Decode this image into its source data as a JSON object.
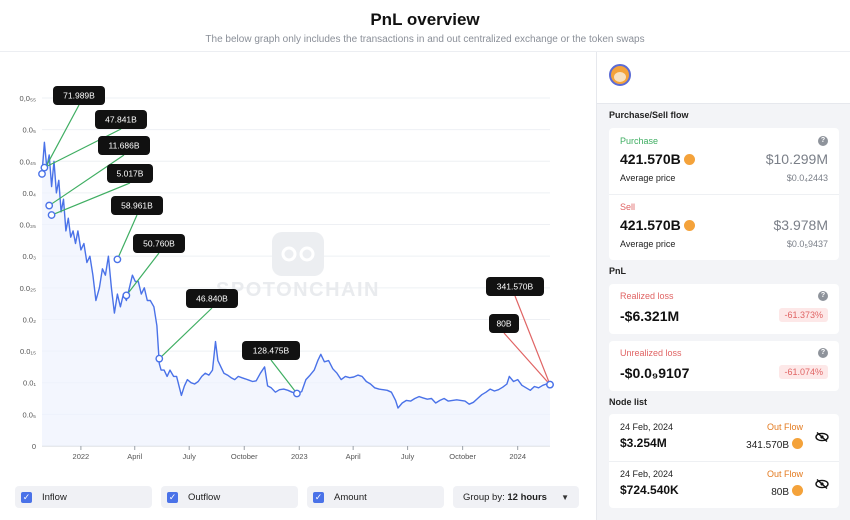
{
  "header": {
    "title": "PnL overview",
    "subtitle": "The below graph only includes the transactions in and out centralized exchange or the token swaps"
  },
  "chart_data": {
    "type": "line",
    "title": "",
    "xlabel": "",
    "ylabel": "",
    "y_tick_labels": [
      "0,0₅₅",
      "0.0₅",
      "0.0₄₅",
      "0.0₄",
      "0.0₃₅",
      "0.0₃",
      "0.0₂₅",
      "0.0₂",
      "0.0₁₅",
      "0.0₁",
      "0.0₅",
      "0"
    ],
    "y_tick_values": [
      0.055,
      0.05,
      0.045,
      0.04,
      0.035,
      0.03,
      0.025,
      0.02,
      0.015,
      0.01,
      0.005,
      0
    ],
    "ylim": [
      0,
      0.055
    ],
    "x_tick_labels": [
      "2022",
      "April",
      "July",
      "October",
      "2023",
      "April",
      "July",
      "October",
      "2024"
    ],
    "x_tick_values": [
      "2022-01-01",
      "2022-04-01",
      "2022-07-01",
      "2022-10-01",
      "2023-01-01",
      "2023-04-01",
      "2023-07-01",
      "2023-10-01",
      "2024-01-01"
    ],
    "xlim": [
      "2021-10-28",
      "2024-02-24"
    ],
    "series": [
      {
        "color": "#4a72e8",
        "points": [
          [
            "2021-10-28",
            0.043
          ],
          [
            "2021-11-01",
            0.048
          ],
          [
            "2021-11-05",
            0.044
          ],
          [
            "2021-11-09",
            0.046
          ],
          [
            "2021-11-13",
            0.041
          ],
          [
            "2021-11-17",
            0.045
          ],
          [
            "2021-11-21",
            0.04
          ],
          [
            "2021-11-25",
            0.042
          ],
          [
            "2021-11-29",
            0.037
          ],
          [
            "2021-12-03",
            0.039
          ],
          [
            "2021-12-07",
            0.034
          ],
          [
            "2021-12-11",
            0.036
          ],
          [
            "2021-12-15",
            0.033
          ],
          [
            "2021-12-19",
            0.034
          ],
          [
            "2021-12-23",
            0.032
          ],
          [
            "2021-12-27",
            0.034
          ],
          [
            "2022-01-01",
            0.031
          ],
          [
            "2022-01-06",
            0.032
          ],
          [
            "2022-01-11",
            0.029
          ],
          [
            "2022-01-16",
            0.03
          ],
          [
            "2022-01-21",
            0.027
          ],
          [
            "2022-01-26",
            0.023
          ],
          [
            "2022-02-01",
            0.025
          ],
          [
            "2022-02-06",
            0.028
          ],
          [
            "2022-02-11",
            0.027
          ],
          [
            "2022-02-16",
            0.03
          ],
          [
            "2022-02-21",
            0.025
          ],
          [
            "2022-02-26",
            0.021
          ],
          [
            "2022-03-03",
            0.024
          ],
          [
            "2022-03-08",
            0.022
          ],
          [
            "2022-03-13",
            0.024
          ],
          [
            "2022-03-18",
            0.023
          ],
          [
            "2022-03-23",
            0.025
          ],
          [
            "2022-03-28",
            0.027
          ],
          [
            "2022-04-02",
            0.026
          ],
          [
            "2022-04-07",
            0.026
          ],
          [
            "2022-04-12",
            0.024
          ],
          [
            "2022-04-17",
            0.025
          ],
          [
            "2022-04-22",
            0.023
          ],
          [
            "2022-04-27",
            0.023
          ],
          [
            "2022-05-03",
            0.022
          ],
          [
            "2022-05-08",
            0.019
          ],
          [
            "2022-05-12",
            0.013
          ],
          [
            "2022-05-15",
            0.012
          ],
          [
            "2022-05-20",
            0.012
          ],
          [
            "2022-05-25",
            0.011
          ],
          [
            "2022-05-30",
            0.012
          ],
          [
            "2022-06-05",
            0.011
          ],
          [
            "2022-06-10",
            0.011
          ],
          [
            "2022-06-14",
            0.0095
          ],
          [
            "2022-06-18",
            0.008
          ],
          [
            "2022-06-23",
            0.0095
          ],
          [
            "2022-06-28",
            0.0105
          ],
          [
            "2022-07-04",
            0.01
          ],
          [
            "2022-07-10",
            0.0098
          ],
          [
            "2022-07-16",
            0.0102
          ],
          [
            "2022-07-22",
            0.011
          ],
          [
            "2022-07-28",
            0.0115
          ],
          [
            "2022-08-03",
            0.0112
          ],
          [
            "2022-08-09",
            0.012
          ],
          [
            "2022-08-14",
            0.0165
          ],
          [
            "2022-08-18",
            0.0135
          ],
          [
            "2022-08-23",
            0.0125
          ],
          [
            "2022-08-28",
            0.0115
          ],
          [
            "2022-09-03",
            0.0112
          ],
          [
            "2022-09-09",
            0.0108
          ],
          [
            "2022-09-15",
            0.0105
          ],
          [
            "2022-09-21",
            0.011
          ],
          [
            "2022-09-27",
            0.0108
          ],
          [
            "2022-10-03",
            0.0106
          ],
          [
            "2022-10-09",
            0.0104
          ],
          [
            "2022-10-15",
            0.0102
          ],
          [
            "2022-10-21",
            0.0103
          ],
          [
            "2022-10-28",
            0.0115
          ],
          [
            "2022-11-04",
            0.0125
          ],
          [
            "2022-11-09",
            0.0095
          ],
          [
            "2022-11-15",
            0.0092
          ],
          [
            "2022-11-22",
            0.0085
          ],
          [
            "2022-11-29",
            0.0089
          ],
          [
            "2022-12-06",
            0.009
          ],
          [
            "2022-12-13",
            0.0088
          ],
          [
            "2022-12-20",
            0.0085
          ],
          [
            "2022-12-28",
            0.0083
          ],
          [
            "2023-01-05",
            0.0086
          ],
          [
            "2023-01-12",
            0.0105
          ],
          [
            "2023-01-19",
            0.0112
          ],
          [
            "2023-01-26",
            0.012
          ],
          [
            "2023-02-01",
            0.0135
          ],
          [
            "2023-02-06",
            0.0145
          ],
          [
            "2023-02-12",
            0.0133
          ],
          [
            "2023-02-19",
            0.0135
          ],
          [
            "2023-02-26",
            0.0122
          ],
          [
            "2023-03-05",
            0.0115
          ],
          [
            "2023-03-12",
            0.0105
          ],
          [
            "2023-03-19",
            0.011
          ],
          [
            "2023-03-26",
            0.0108
          ],
          [
            "2023-04-02",
            0.0109
          ],
          [
            "2023-04-09",
            0.0112
          ],
          [
            "2023-04-16",
            0.011
          ],
          [
            "2023-04-23",
            0.0102
          ],
          [
            "2023-04-30",
            0.0098
          ],
          [
            "2023-05-07",
            0.0092
          ],
          [
            "2023-05-14",
            0.009
          ],
          [
            "2023-05-21",
            0.0089
          ],
          [
            "2023-05-28",
            0.0088
          ],
          [
            "2023-06-04",
            0.0085
          ],
          [
            "2023-06-11",
            0.0072
          ],
          [
            "2023-06-15",
            0.006
          ],
          [
            "2023-06-22",
            0.0068
          ],
          [
            "2023-06-29",
            0.0072
          ],
          [
            "2023-07-06",
            0.0071
          ],
          [
            "2023-07-13",
            0.0075
          ],
          [
            "2023-07-20",
            0.0078
          ],
          [
            "2023-07-27",
            0.0076
          ],
          [
            "2023-08-03",
            0.0074
          ],
          [
            "2023-08-10",
            0.0075
          ],
          [
            "2023-08-17",
            0.0068
          ],
          [
            "2023-08-24",
            0.0072
          ],
          [
            "2023-08-31",
            0.0075
          ],
          [
            "2023-09-07",
            0.0071
          ],
          [
            "2023-09-14",
            0.0072
          ],
          [
            "2023-09-21",
            0.0073
          ],
          [
            "2023-09-28",
            0.0072
          ],
          [
            "2023-10-05",
            0.0071
          ],
          [
            "2023-10-12",
            0.0066
          ],
          [
            "2023-10-19",
            0.0069
          ],
          [
            "2023-10-26",
            0.0075
          ],
          [
            "2023-11-02",
            0.0081
          ],
          [
            "2023-11-09",
            0.0085
          ],
          [
            "2023-11-16",
            0.009
          ],
          [
            "2023-11-23",
            0.0087
          ],
          [
            "2023-11-30",
            0.0089
          ],
          [
            "2023-12-07",
            0.0093
          ],
          [
            "2023-12-14",
            0.0098
          ],
          [
            "2023-12-18",
            0.011
          ],
          [
            "2023-12-25",
            0.0102
          ],
          [
            "2024-01-01",
            0.0105
          ],
          [
            "2024-01-08",
            0.0096
          ],
          [
            "2024-01-15",
            0.0092
          ],
          [
            "2024-01-22",
            0.0088
          ],
          [
            "2024-01-29",
            0.0094
          ],
          [
            "2024-02-05",
            0.0092
          ],
          [
            "2024-02-12",
            0.0096
          ],
          [
            "2024-02-18",
            0.0098
          ],
          [
            "2024-02-24",
            0.0097
          ]
        ]
      }
    ],
    "trade_labels": [
      {
        "label": "71.989B",
        "date": "2021-10-28",
        "value": 0.043,
        "type": "buy"
      },
      {
        "label": "47.841B",
        "date": "2021-11-01",
        "value": 0.044,
        "type": "buy"
      },
      {
        "label": "11.686B",
        "date": "2021-11-09",
        "value": 0.038,
        "type": "buy"
      },
      {
        "label": "5.017B",
        "date": "2021-11-13",
        "value": 0.0365,
        "type": "buy"
      },
      {
        "label": "58.961B",
        "date": "2022-03-03",
        "value": 0.0295,
        "type": "buy"
      },
      {
        "label": "50.760B",
        "date": "2022-03-18",
        "value": 0.0238,
        "type": "buy"
      },
      {
        "label": "46.840B",
        "date": "2022-05-12",
        "value": 0.0138,
        "type": "buy"
      },
      {
        "label": "128.475B",
        "date": "2022-12-28",
        "value": 0.0083,
        "type": "buy"
      },
      {
        "label": "341.570B",
        "date": "2024-02-24",
        "value": 0.0097,
        "type": "sell"
      },
      {
        "label": "80B",
        "date": "2024-02-24",
        "value": 0.0097,
        "type": "sell"
      }
    ],
    "watermark": "SPOTONCHAIN",
    "colors": {
      "line": "#4a72e8",
      "buy": "#3fae62",
      "sell": "#e06464"
    },
    "grid": true
  },
  "controls": {
    "inflow_label": "Inflow",
    "outflow_label": "Outflow",
    "amount_label": "Amount",
    "groupby_label": "Group by:",
    "groupby_value": "12 hours"
  },
  "side": {
    "purchase_sell_title": "Purchase/Sell flow",
    "purchase": {
      "label": "Purchase",
      "amount": "421.570B",
      "usd": "$10.299M",
      "avg_label": "Average price",
      "avg_value": "$0.0₄2443"
    },
    "sell": {
      "label": "Sell",
      "amount": "421.570B",
      "usd": "$3.978M",
      "avg_label": "Average price",
      "avg_value": "$0.0₅9437"
    },
    "pnl_title": "PnL",
    "realized": {
      "label": "Realized loss",
      "value": "-$6.321M",
      "pct": "-61.373%"
    },
    "unrealized": {
      "label": "Unrealized loss",
      "value": "-$0.0₉9107",
      "pct": "-61.074%"
    },
    "node_list_title": "Node list",
    "nodes": [
      {
        "date": "24 Feb, 2024",
        "usd": "$3.254M",
        "flow": "Out Flow",
        "amount": "341.570B"
      },
      {
        "date": "24 Feb, 2024",
        "usd": "$724.540K",
        "flow": "Out Flow",
        "amount": "80B"
      }
    ],
    "help_glyph": "?"
  }
}
